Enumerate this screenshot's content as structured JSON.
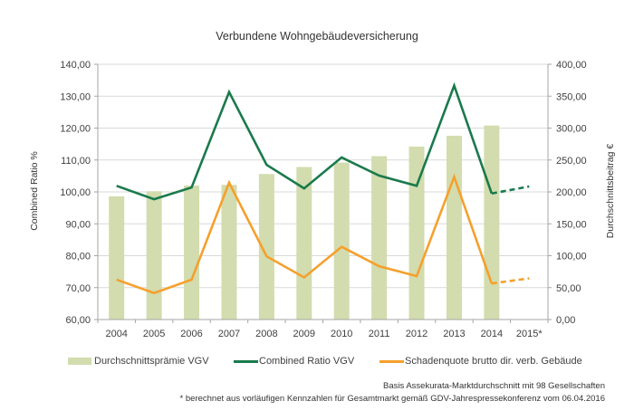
{
  "chart_data": {
    "type": "bar+line",
    "title": "Verbundene Wohngebäudeversicherung",
    "categories": [
      "2004",
      "2005",
      "2006",
      "2007",
      "2008",
      "2009",
      "2010",
      "2011",
      "2012",
      "2013",
      "2014",
      "2015*"
    ],
    "left_axis": {
      "label": "Combined Ratio %",
      "ylim": [
        60,
        140
      ],
      "ticks": [
        "60,00",
        "70,00",
        "80,00",
        "90,00",
        "100,00",
        "110,00",
        "120,00",
        "130,00",
        "140,00"
      ]
    },
    "right_axis": {
      "label": "Durchschnittsbeitrag €",
      "ylim": [
        0,
        400
      ],
      "ticks": [
        "0,00",
        "50,00",
        "100,00",
        "150,00",
        "200,00",
        "250,00",
        "300,00",
        "350,00",
        "400,00"
      ]
    },
    "grid": true,
    "legend_position": "bottom",
    "series": [
      {
        "name": "Durchschnittsprämie VGV",
        "type": "bar",
        "axis": "right",
        "color": "#d2dcae",
        "values": [
          193,
          201,
          210,
          211,
          228,
          239,
          246,
          256,
          271,
          288,
          304,
          null
        ]
      },
      {
        "name": "Combined Ratio VGV",
        "type": "line",
        "axis": "left",
        "color": "#1a7a4c",
        "values": [
          101.9,
          97.7,
          101.4,
          131.3,
          108.5,
          101.1,
          110.8,
          105.1,
          101.9,
          133.3,
          99.5,
          101.7
        ],
        "dashed_from_index": 10
      },
      {
        "name": "Schadenquote brutto dir. verb. Gebäude",
        "type": "line",
        "axis": "left",
        "color": "#f5a02d",
        "values": [
          72.5,
          68.3,
          72.5,
          102.9,
          79.8,
          73.2,
          82.8,
          76.7,
          73.6,
          104.7,
          71.3,
          72.9
        ],
        "dashed_from_index": 10
      }
    ]
  },
  "notes": {
    "line1": "Basis Assekurata-Marktdurchschnitt mit 98 Gesellschaften",
    "line2": "* berechnet aus vorläufigen Kennzahlen für Gesamtmarkt gemäß GDV-Jahrespressekonferenz vom 06.04.2016"
  },
  "colors": {
    "axis": "#a6a6a6",
    "grid": "#d9d9d9",
    "text": "#404040"
  }
}
